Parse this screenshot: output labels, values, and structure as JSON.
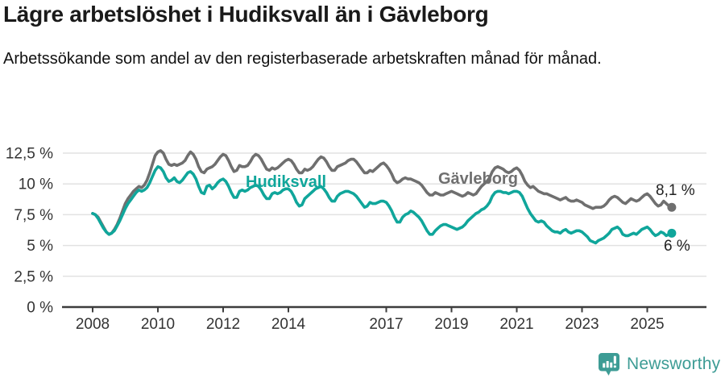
{
  "header": {
    "title": "Lägre arbetslöshet i Hudiksvall än i Gävleborg",
    "subtitle": "Arbetssökande som andel av den registerbaserade arbetskraften månad för månad."
  },
  "chart_data": {
    "type": "line",
    "title": "Lägre arbetslöshet i Hudiksvall än i Gävleborg",
    "subtitle": "Arbetssökande som andel av den registerbaserade arbetskraften månad för månad.",
    "unit": "%",
    "frequency": "monthly",
    "x_start_year": 2008,
    "x_start_month": 1,
    "x_range": [
      2008.0,
      2025.75
    ],
    "ylim": [
      0,
      13.2
    ],
    "grid": true,
    "legend": "inline-labels",
    "y_ticks": [
      {
        "value": 0,
        "label": "0 %"
      },
      {
        "value": 2.5,
        "label": "2,5 %"
      },
      {
        "value": 5,
        "label": "5 %"
      },
      {
        "value": 7.5,
        "label": "7,5 %"
      },
      {
        "value": 10,
        "label": "10 %"
      },
      {
        "value": 12.5,
        "label": "12,5 %"
      }
    ],
    "x_ticks": [
      {
        "value": 2008,
        "label": "2008"
      },
      {
        "value": 2010,
        "label": "2010"
      },
      {
        "value": 2012,
        "label": "2012"
      },
      {
        "value": 2014,
        "label": "2014"
      },
      {
        "value": 2017,
        "label": "2017"
      },
      {
        "value": 2019,
        "label": "2019"
      },
      {
        "value": 2021,
        "label": "2021"
      },
      {
        "value": 2023,
        "label": "2023"
      },
      {
        "value": 2025,
        "label": "2025"
      }
    ],
    "series": [
      {
        "name": "Gävleborg",
        "color": "#6f6f6f",
        "end_label": "8,1 %",
        "end_value": 8.1,
        "values": [
          7.6,
          7.5,
          7.3,
          6.9,
          6.5,
          6.1,
          5.9,
          6.0,
          6.3,
          6.7,
          7.2,
          7.8,
          8.4,
          8.8,
          9.1,
          9.4,
          9.6,
          9.8,
          9.7,
          9.9,
          10.3,
          10.9,
          11.6,
          12.3,
          12.6,
          12.7,
          12.5,
          12.0,
          11.6,
          11.5,
          11.6,
          11.5,
          11.6,
          11.7,
          11.9,
          12.3,
          12.6,
          12.4,
          12.0,
          11.4,
          11.0,
          10.9,
          11.2,
          11.3,
          11.4,
          11.6,
          11.9,
          12.2,
          12.4,
          12.3,
          11.9,
          11.4,
          11.0,
          11.1,
          11.5,
          11.4,
          11.4,
          11.5,
          11.8,
          12.2,
          12.4,
          12.3,
          12.0,
          11.6,
          11.2,
          11.1,
          11.3,
          11.2,
          11.3,
          11.5,
          11.7,
          11.9,
          12.0,
          11.9,
          11.6,
          11.2,
          10.9,
          10.9,
          11.2,
          11.1,
          11.2,
          11.4,
          11.7,
          12.0,
          12.2,
          12.1,
          11.8,
          11.4,
          11.1,
          11.1,
          11.4,
          11.5,
          11.6,
          11.7,
          11.9,
          12.0,
          12.0,
          11.8,
          11.5,
          11.2,
          10.9,
          10.9,
          11.1,
          11.0,
          11.2,
          11.4,
          11.6,
          11.7,
          11.5,
          11.2,
          10.8,
          10.3,
          10.1,
          10.2,
          10.4,
          10.5,
          10.4,
          10.4,
          10.3,
          10.2,
          10.1,
          9.9,
          9.6,
          9.3,
          9.1,
          9.1,
          9.3,
          9.2,
          9.1,
          9.1,
          9.2,
          9.3,
          9.4,
          9.3,
          9.2,
          9.1,
          9.0,
          9.1,
          9.3,
          9.2,
          9.1,
          9.2,
          9.5,
          9.8,
          10.0,
          10.2,
          10.5,
          11.0,
          11.3,
          11.4,
          11.3,
          11.2,
          11.0,
          10.9,
          11.0,
          11.2,
          11.3,
          11.1,
          10.7,
          10.2,
          9.9,
          9.7,
          9.8,
          9.6,
          9.4,
          9.3,
          9.2,
          9.2,
          9.1,
          9.0,
          8.9,
          8.8,
          8.7,
          8.8,
          8.9,
          8.7,
          8.6,
          8.6,
          8.7,
          8.6,
          8.5,
          8.3,
          8.2,
          8.1,
          8.0,
          8.1,
          8.1,
          8.1,
          8.2,
          8.4,
          8.7,
          8.9,
          9.0,
          8.9,
          8.7,
          8.5,
          8.4,
          8.6,
          8.8,
          8.7,
          8.6,
          8.7,
          8.9,
          9.1,
          9.2,
          9.0,
          8.7,
          8.4,
          8.2,
          8.3,
          8.6,
          8.4,
          8.2,
          8.1
        ]
      },
      {
        "name": "Hudiksvall",
        "color": "#10a69b",
        "end_label": "6 %",
        "end_value": 6.0,
        "values": [
          7.6,
          7.5,
          7.2,
          6.8,
          6.4,
          6.1,
          5.9,
          6.0,
          6.2,
          6.6,
          7.0,
          7.5,
          8.0,
          8.4,
          8.7,
          9.0,
          9.3,
          9.5,
          9.4,
          9.5,
          9.7,
          10.1,
          10.6,
          11.1,
          11.4,
          11.3,
          11.0,
          10.5,
          10.2,
          10.3,
          10.5,
          10.2,
          10.1,
          10.3,
          10.6,
          10.9,
          11.0,
          10.8,
          10.4,
          9.8,
          9.3,
          9.2,
          9.8,
          9.9,
          9.6,
          9.8,
          10.1,
          10.3,
          10.4,
          10.2,
          9.8,
          9.3,
          8.9,
          8.9,
          9.4,
          9.5,
          9.4,
          9.5,
          9.7,
          9.8,
          9.9,
          9.8,
          9.5,
          9.1,
          8.8,
          8.8,
          9.2,
          9.3,
          9.2,
          9.3,
          9.5,
          9.6,
          9.6,
          9.4,
          9.0,
          8.5,
          8.2,
          8.3,
          8.8,
          9.0,
          9.2,
          9.4,
          9.6,
          9.7,
          9.8,
          9.6,
          9.3,
          8.9,
          8.6,
          8.6,
          9.0,
          9.2,
          9.3,
          9.4,
          9.4,
          9.3,
          9.2,
          9.0,
          8.7,
          8.4,
          8.1,
          8.2,
          8.5,
          8.4,
          8.4,
          8.5,
          8.6,
          8.6,
          8.5,
          8.2,
          7.8,
          7.3,
          6.9,
          6.9,
          7.3,
          7.5,
          7.6,
          7.8,
          7.7,
          7.5,
          7.3,
          7.0,
          6.6,
          6.2,
          5.9,
          5.9,
          6.2,
          6.4,
          6.6,
          6.7,
          6.7,
          6.6,
          6.5,
          6.4,
          6.3,
          6.4,
          6.5,
          6.7,
          7.0,
          7.2,
          7.4,
          7.6,
          7.7,
          7.9,
          8.0,
          8.2,
          8.5,
          9.0,
          9.3,
          9.4,
          9.4,
          9.3,
          9.3,
          9.2,
          9.3,
          9.4,
          9.4,
          9.3,
          9.0,
          8.5,
          8.0,
          7.6,
          7.3,
          7.0,
          6.9,
          7.0,
          6.9,
          6.6,
          6.4,
          6.2,
          6.1,
          6.1,
          6.0,
          6.2,
          6.3,
          6.1,
          6.0,
          6.1,
          6.2,
          6.2,
          6.1,
          5.9,
          5.7,
          5.4,
          5.3,
          5.2,
          5.4,
          5.5,
          5.6,
          5.8,
          6.0,
          6.3,
          6.4,
          6.5,
          6.3,
          5.9,
          5.8,
          5.8,
          5.9,
          6.0,
          5.9,
          6.1,
          6.3,
          6.4,
          6.5,
          6.3,
          6.0,
          5.8,
          5.9,
          6.1,
          6.0,
          5.8,
          5.9,
          6.0
        ]
      }
    ]
  },
  "footer": {
    "brand": "Newsworthy",
    "brand_color": "#3d9c95"
  }
}
